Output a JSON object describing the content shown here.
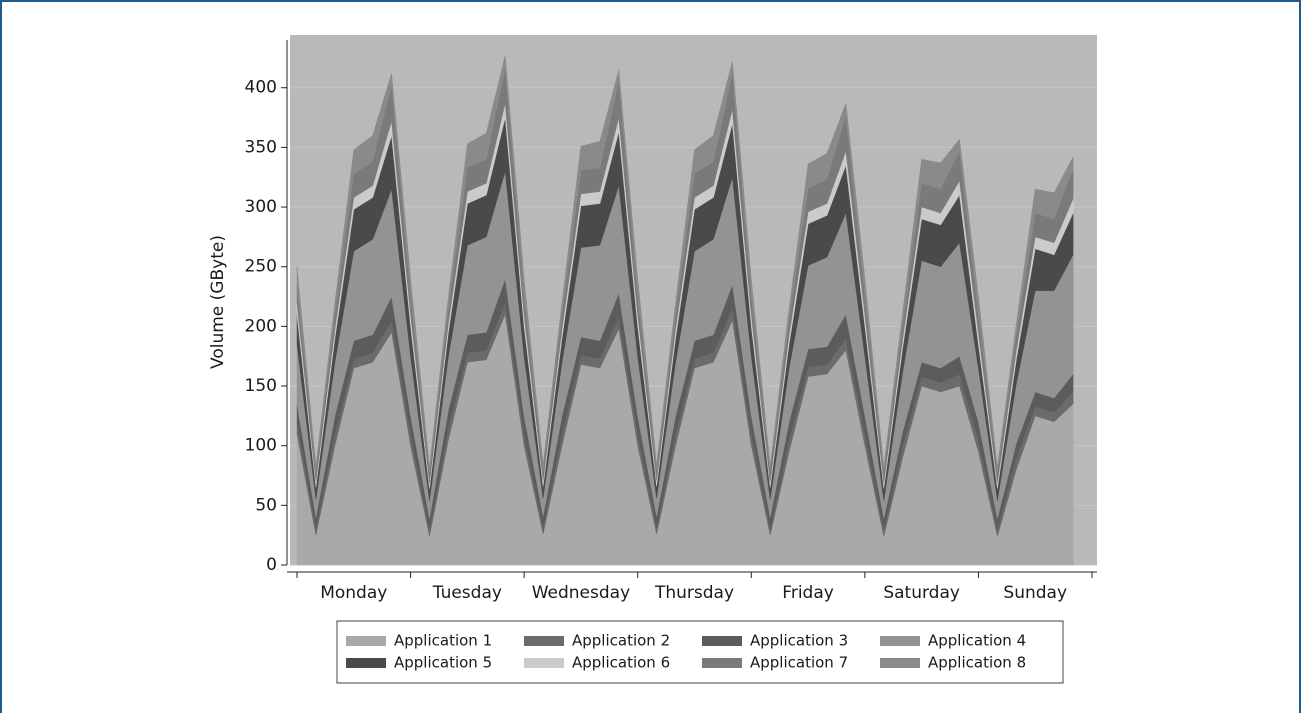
{
  "chart_data": {
    "type": "stacked-area",
    "y_label": "Volume (GByte)",
    "categories": [
      null,
      null,
      null,
      "Monday",
      null,
      null,
      null,
      null,
      null,
      "Tuesday",
      null,
      null,
      null,
      null,
      null,
      "Wednesday",
      null,
      null,
      null,
      null,
      null,
      "Thursday",
      null,
      null,
      null,
      null,
      null,
      "Friday",
      null,
      null,
      null,
      null,
      null,
      "Saturday",
      null,
      null,
      null,
      null,
      null,
      "Sunday",
      null,
      null
    ],
    "ylim": [
      0,
      440
    ],
    "yticks": [
      0,
      50,
      100,
      150,
      200,
      250,
      300,
      350,
      400
    ],
    "grid": true,
    "legend": "bottom",
    "series": [
      {
        "name": "Application 1",
        "color": "#a9a9a9",
        "values": [
          110,
          25,
          100,
          165,
          170,
          195,
          100,
          24,
          105,
          170,
          172,
          210,
          100,
          26,
          100,
          168,
          165,
          198,
          100,
          26,
          100,
          165,
          170,
          205,
          100,
          25,
          95,
          158,
          160,
          180,
          100,
          24,
          90,
          150,
          145,
          150,
          95,
          24,
          80,
          125,
          120,
          135
        ]
      },
      {
        "name": "Application 2",
        "color": "#6b6b6b",
        "values": [
          10,
          5,
          10,
          8,
          8,
          10,
          10,
          5,
          10,
          8,
          8,
          10,
          10,
          5,
          10,
          8,
          8,
          10,
          10,
          5,
          10,
          8,
          8,
          10,
          10,
          5,
          10,
          8,
          8,
          10,
          10,
          5,
          10,
          8,
          8,
          10,
          10,
          5,
          10,
          8,
          8,
          10
        ]
      },
      {
        "name": "Application 3",
        "color": "#5c5c5c",
        "values": [
          15,
          10,
          15,
          15,
          15,
          20,
          15,
          10,
          15,
          15,
          15,
          20,
          15,
          10,
          15,
          15,
          15,
          20,
          15,
          10,
          15,
          15,
          15,
          20,
          15,
          10,
          15,
          15,
          15,
          20,
          15,
          10,
          12,
          12,
          12,
          15,
          15,
          10,
          12,
          12,
          12,
          15
        ]
      },
      {
        "name": "Application 4",
        "color": "#939393",
        "values": [
          50,
          15,
          45,
          75,
          80,
          90,
          50,
          15,
          45,
          75,
          80,
          90,
          50,
          15,
          45,
          75,
          80,
          90,
          50,
          15,
          45,
          75,
          80,
          90,
          50,
          15,
          45,
          70,
          75,
          85,
          50,
          15,
          50,
          85,
          85,
          95,
          45,
          15,
          50,
          85,
          90,
          100
        ]
      },
      {
        "name": "Application 5",
        "color": "#4a4a4a",
        "values": [
          25,
          10,
          20,
          35,
          35,
          45,
          25,
          10,
          20,
          35,
          35,
          45,
          25,
          10,
          20,
          35,
          35,
          45,
          25,
          10,
          20,
          35,
          35,
          45,
          25,
          10,
          20,
          35,
          35,
          40,
          25,
          10,
          20,
          35,
          35,
          40,
          20,
          10,
          20,
          35,
          30,
          35
        ]
      },
      {
        "name": "Application 6",
        "color": "#cbcbcb",
        "values": [
          10,
          5,
          8,
          10,
          10,
          12,
          10,
          5,
          8,
          10,
          10,
          12,
          10,
          5,
          8,
          10,
          10,
          12,
          10,
          5,
          8,
          10,
          10,
          12,
          10,
          5,
          8,
          10,
          10,
          12,
          10,
          5,
          8,
          10,
          10,
          12,
          10,
          5,
          8,
          10,
          10,
          12
        ]
      },
      {
        "name": "Application 7",
        "color": "#7a7a7a",
        "values": [
          15,
          8,
          12,
          20,
          20,
          30,
          15,
          8,
          12,
          20,
          20,
          30,
          15,
          8,
          12,
          20,
          20,
          30,
          15,
          8,
          12,
          20,
          20,
          30,
          15,
          8,
          12,
          20,
          20,
          30,
          15,
          8,
          12,
          20,
          20,
          25,
          15,
          8,
          12,
          20,
          20,
          25
        ]
      },
      {
        "name": "Application 8",
        "color": "#8a8a8a",
        "values": [
          15,
          5,
          10,
          20,
          22,
          10,
          15,
          5,
          10,
          20,
          22,
          10,
          15,
          5,
          10,
          20,
          22,
          10,
          15,
          5,
          10,
          20,
          22,
          10,
          15,
          5,
          10,
          20,
          22,
          10,
          15,
          5,
          10,
          20,
          22,
          10,
          15,
          5,
          10,
          20,
          22,
          10
        ]
      }
    ]
  }
}
